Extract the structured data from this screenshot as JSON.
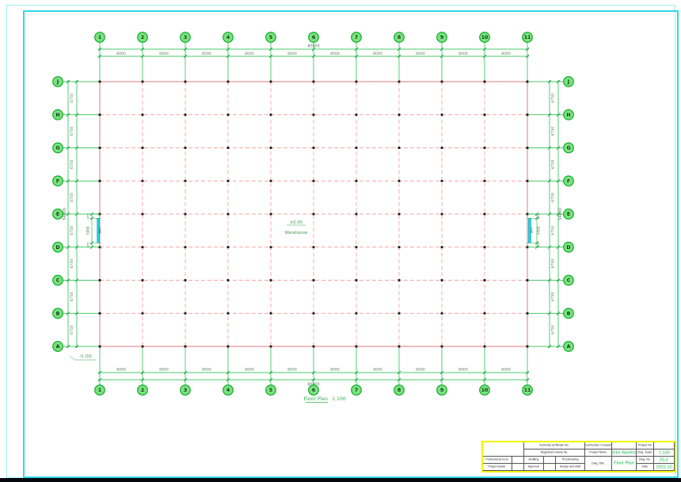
{
  "plan": {
    "column_bubbles": [
      "1",
      "2",
      "3",
      "4",
      "5",
      "6",
      "7",
      "8",
      "9",
      "10",
      "11"
    ],
    "row_bubbles": [
      "J",
      "H",
      "G",
      "F",
      "E",
      "D",
      "C",
      "B",
      "A"
    ],
    "dims": {
      "bay_width": "8000",
      "overall_width": "80000",
      "bay_height": "6750",
      "overall_height": "54000",
      "door_width": "5000",
      "door_offset": "875"
    },
    "doors": {
      "label": "JLM1"
    },
    "annotations": {
      "center_elevation": "±0.00",
      "center_label": "Warehouse",
      "corner_elevation": "-0.150"
    },
    "caption": {
      "title": "Floor Plan",
      "scale": "1:100"
    }
  },
  "title_block": {
    "labels": {
      "authority_no": "Authority certificate No.",
      "registered_no": "Registered stamp No.",
      "construction_company": "Construction Company",
      "project_name": "Project Name",
      "dwg_title": "Dwg. Title",
      "project_no": "Project No.",
      "dwg_scale": "Dwg. Scale",
      "dwg_no": "Dwg. No.",
      "date": "Date",
      "professional_level": "Professional level",
      "project_leader": "Project leader",
      "auditing": "Auditing",
      "approval": "Approval",
      "proofreading": "Proofreading",
      "design_and_draft": "Design and draft"
    },
    "values": {
      "project_name": "80X54m Warehouse",
      "dwg_title": "Floor Plan",
      "scale": "1:100",
      "dwg_no": "JS-2",
      "date": "2022.10"
    }
  },
  "colors": {
    "grid_green": "#0db63a",
    "axis_red": "#f08a8a",
    "door_cyan": "#17d6e8",
    "annotation_green": "#3f9a52",
    "title_border_yellow": "#f2f200",
    "value_green": "#17b24a"
  }
}
